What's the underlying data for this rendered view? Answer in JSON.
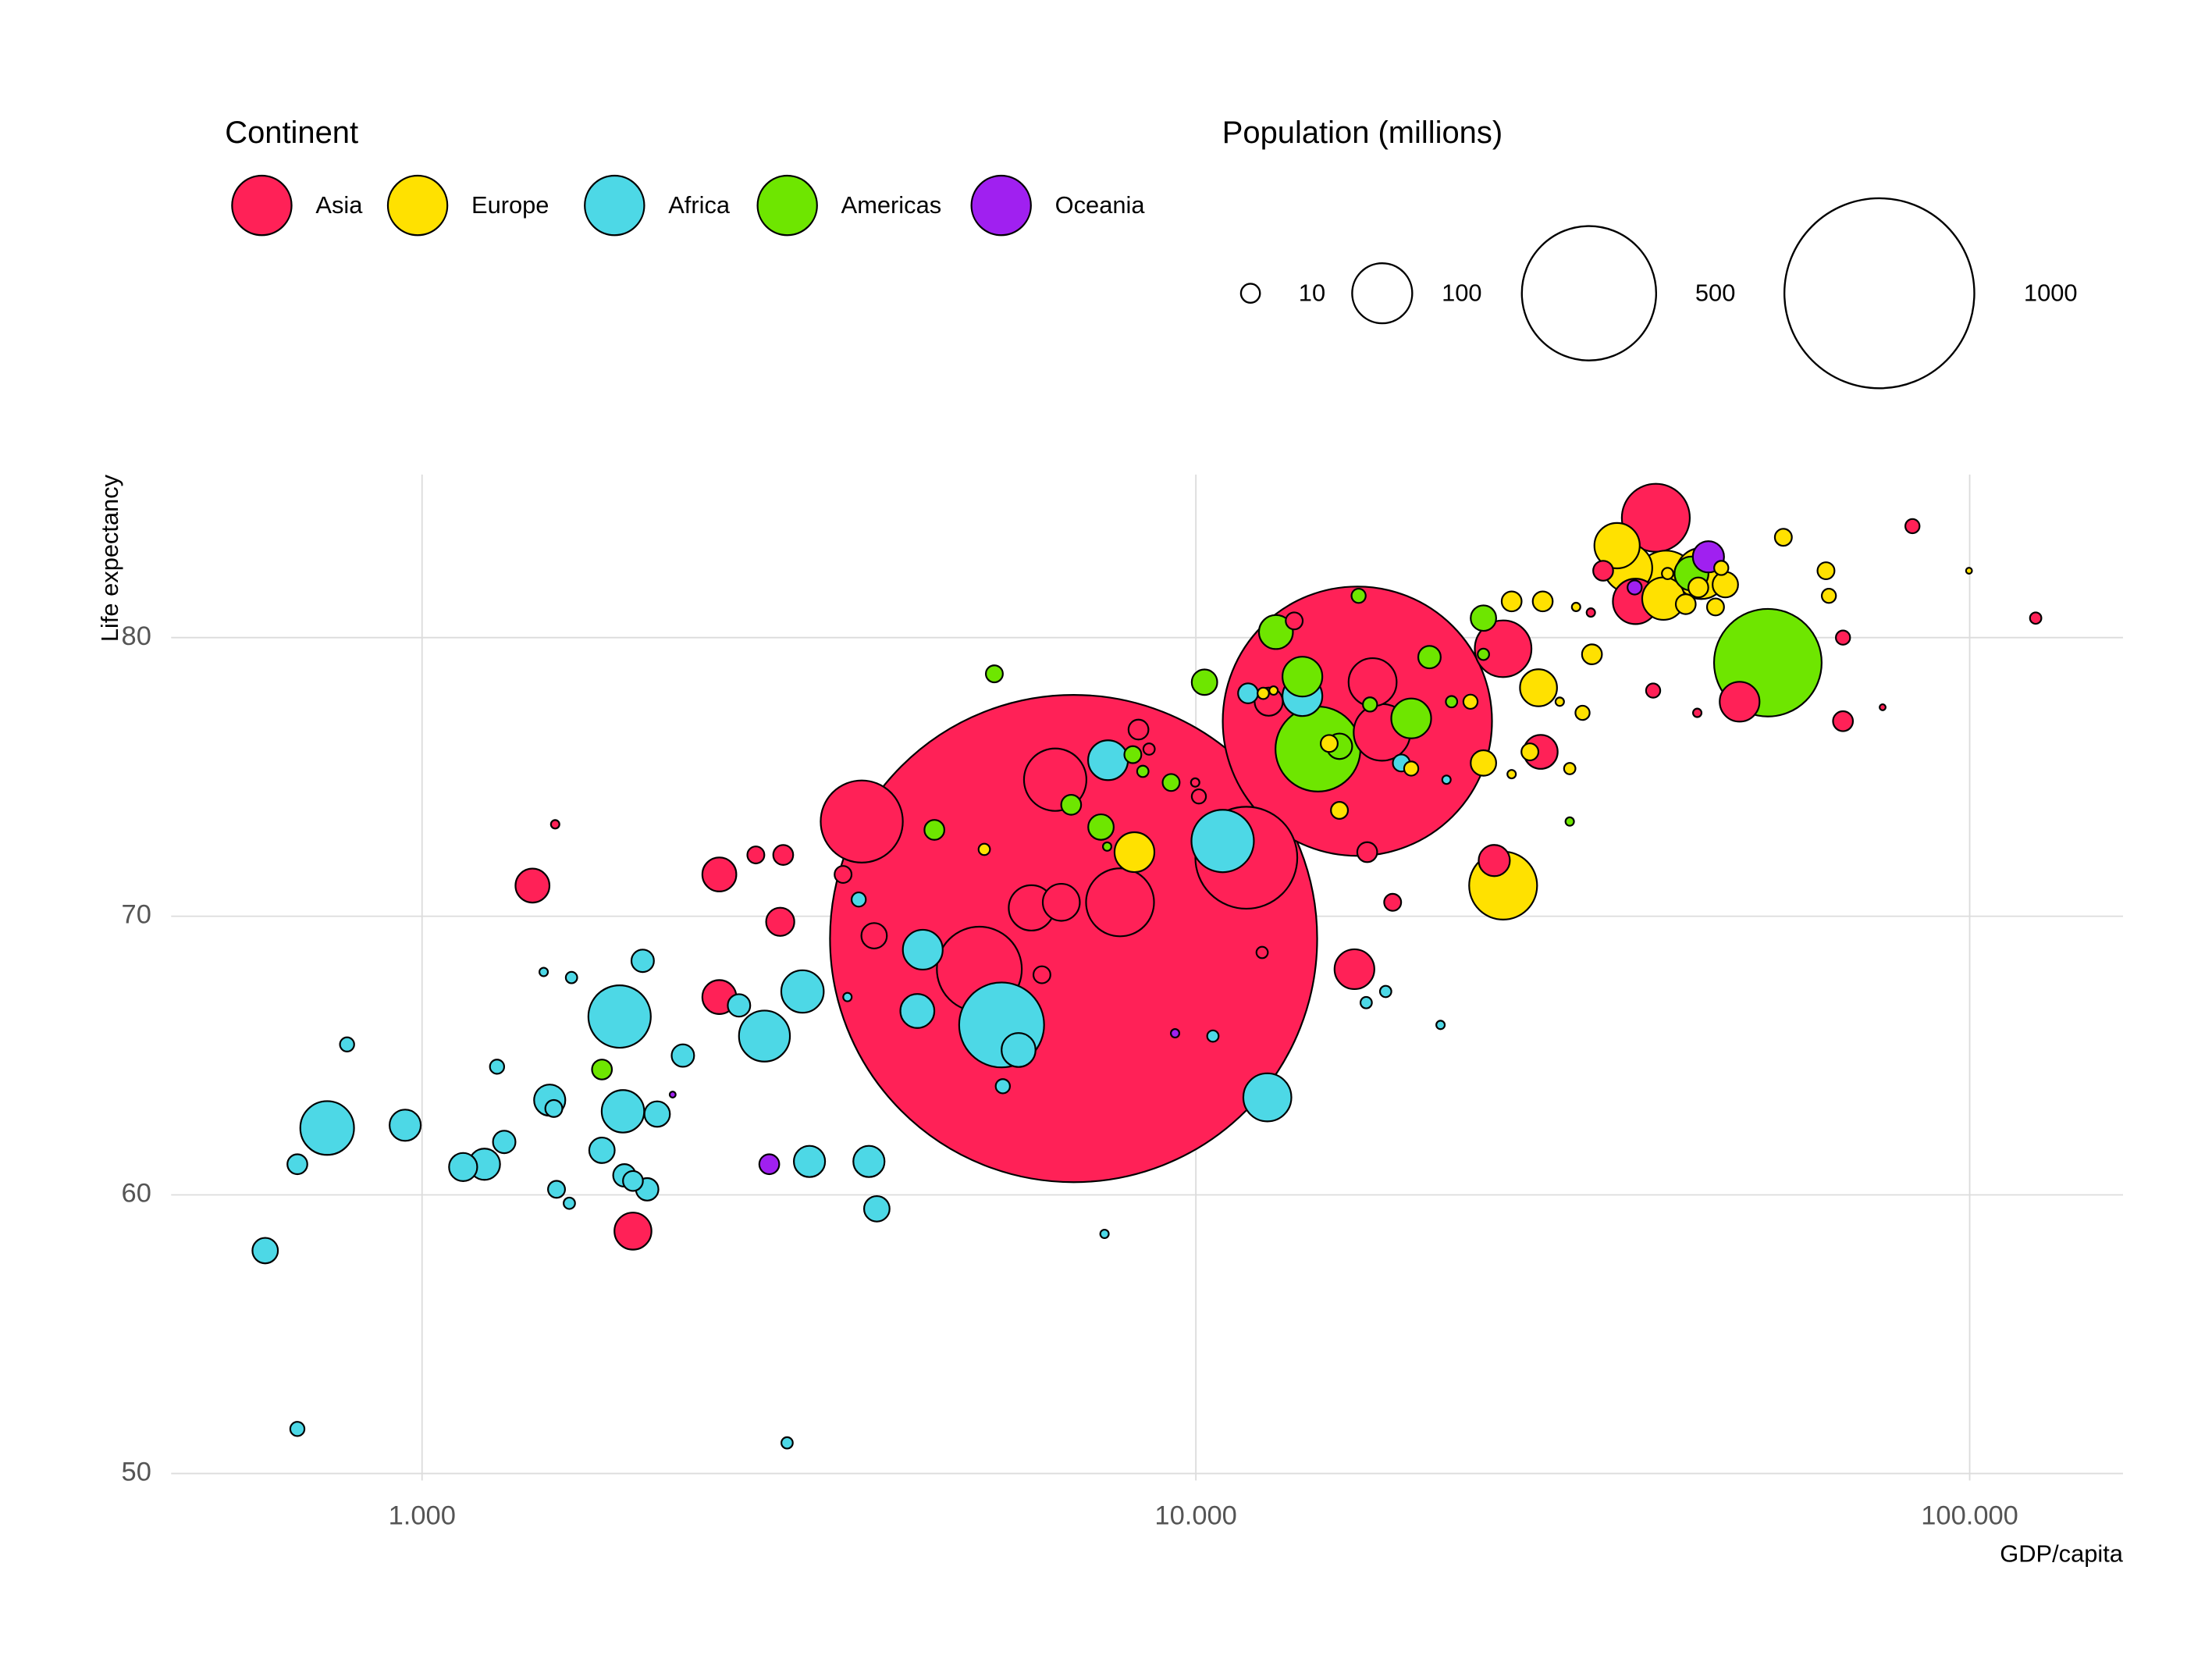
{
  "chart_data": {
    "type": "bubble",
    "x_label": "GDP/capita",
    "y_label": "Life expectancy",
    "legend_title": "Continent",
    "size_legend": {
      "title": "Population (millions)",
      "values": [
        10,
        100,
        500,
        1000
      ]
    },
    "xscale": "log",
    "grid": true,
    "xlim": [
      474,
      157800
    ],
    "ylim": [
      49.75,
      85.85
    ],
    "xticks": [
      {
        "value": 1000,
        "label": "1.000"
      },
      {
        "value": 10000,
        "label": "10.000"
      },
      {
        "value": 100000,
        "label": "100.000"
      }
    ],
    "yticks": [
      50,
      60,
      70,
      80
    ],
    "series": [
      {
        "name": "Asia",
        "color": "#ff2157",
        "x": [
          6950,
          16170,
          3700,
          6580,
          5250,
          7980,
          6130,
          6700,
          11620,
          16920,
          17400,
          24950,
          39300,
          37000,
          50430,
          24300,
          16030,
          27900,
          1389,
          2422,
          2422,
          1873,
          2903,
          3839,
          6325,
          8430,
          8700,
          2700,
          2929,
          3500,
          10090,
          9980,
          16650,
          17960,
          12180,
          13400,
          38990,
          44460,
          33600,
          32390,
          68590,
          68590,
          84340,
          121700,
          77180,
          1486,
          12420
        ],
        "y": [
          69.2,
          77.0,
          73.4,
          74.9,
          68.1,
          70.5,
          70.3,
          70.5,
          72.1,
          78.4,
          76.6,
          79.6,
          84.3,
          81.3,
          77.7,
          72.0,
          68.1,
          75.9,
          71.1,
          71.5,
          67.1,
          58.7,
          69.8,
          69.3,
          67.9,
          76.7,
          76.0,
          72.2,
          72.2,
          71.5,
          74.3,
          74.8,
          72.3,
          70.5,
          68.7,
          80.6,
          78.1,
          77.3,
          82.4,
          80.9,
          80.0,
          77.0,
          84.0,
          80.7,
          77.5,
          73.3,
          77.7
        ],
        "size": [
          6580,
          2010,
          187,
          108,
          200,
          128,
          57,
          38,
          288,
          64,
          89,
          89,
          128,
          57,
          44,
          27,
          44,
          32,
          32,
          32,
          32,
          38,
          22,
          18,
          8,
          11,
          3.6,
          8,
          11,
          8,
          5.6,
          2,
          11,
          8,
          3.6,
          8,
          5.6,
          2,
          11,
          2,
          5.6,
          11,
          5.6,
          3.6,
          1,
          2,
          22
        ]
      },
      {
        "name": "Europe",
        "color": "#ffe100",
        "x": [
          24950,
          45000,
          40500,
          35020,
          36200,
          40200,
          48330,
          44600,
          42960,
          46940,
          47750,
          40700,
          57440,
          65210,
          65770,
          99800,
          27720,
          25590,
          28070,
          32500,
          31600,
          23530,
          27020,
          22640,
          18980,
          14870,
          15330,
          8330,
          5328,
          30420,
          31000,
          12220,
          12600,
          25590,
          29530
        ],
        "y": [
          71.1,
          82.3,
          82.0,
          83.3,
          82.5,
          81.4,
          81.9,
          81.8,
          81.2,
          81.1,
          82.5,
          82.3,
          83.6,
          82.4,
          81.5,
          82.4,
          78.2,
          81.3,
          81.3,
          79.4,
          77.3,
          75.5,
          75.9,
          77.7,
          75.3,
          76.2,
          73.8,
          72.3,
          72.4,
          75.3,
          81.1,
          78.0,
          78.1,
          75.1,
          77.7
        ],
        "size": [
          128,
          72,
          108,
          57,
          64,
          50,
          18,
          11,
          11,
          8,
          5.6,
          3.6,
          8,
          8,
          5.6,
          1,
          38,
          11,
          11,
          11,
          5.6,
          18,
          8,
          5.6,
          5.6,
          8,
          8,
          44,
          3.6,
          3.6,
          2,
          3.6,
          2,
          2,
          2
        ]
      },
      {
        "name": "Africa",
        "color": "#4dd8e6",
        "x": [
          5610,
          1800,
          754,
          10830,
          12370,
          2770,
          3102,
          4437,
          13730,
          7700,
          1818,
          5900,
          4366,
          951,
          1462,
          1204,
          1130,
          3167,
          3780,
          3870,
          1708,
          2013,
          1954,
          1826,
          1873,
          627,
          690,
          1277,
          2173,
          2568,
          1928,
          1492,
          1480,
          1250,
          800,
          690,
          2963,
          3667,
          5630,
          1560,
          1436,
          1550,
          7620,
          10520,
          16600,
          17590,
          20710,
          11680,
          18430,
          21080,
          3546
        ],
        "y": [
          66.1,
          66.4,
          62.4,
          72.7,
          63.5,
          65.7,
          67.3,
          68.8,
          77.9,
          75.6,
          63.0,
          65.2,
          66.6,
          62.5,
          63.4,
          61.1,
          61.0,
          61.2,
          61.2,
          59.5,
          61.6,
          62.9,
          60.2,
          60.7,
          60.5,
          58.0,
          61.1,
          61.9,
          65.0,
          66.8,
          68.4,
          60.2,
          63.1,
          64.6,
          65.4,
          51.6,
          51.1,
          70.6,
          63.9,
          67.8,
          68.0,
          59.7,
          58.6,
          65.7,
          66.9,
          67.3,
          66.1,
          78.0,
          75.5,
          74.9,
          67.1
        ],
        "size": [
          200,
          108,
          80,
          108,
          64,
          72,
          50,
          44,
          44,
          44,
          50,
          32,
          32,
          27,
          27,
          27,
          22,
          27,
          27,
          18,
          18,
          18,
          14,
          14,
          11,
          18,
          11,
          14,
          14,
          14,
          14,
          8,
          8,
          5.6,
          5.6,
          5.6,
          3.6,
          5.6,
          5.6,
          3.6,
          2,
          3.6,
          2,
          3.6,
          3.6,
          3.6,
          2,
          11,
          8,
          2,
          2
        ]
      },
      {
        "name": "Americas",
        "color": "#6ee600",
        "x": [
          54850,
          14380,
          13730,
          12690,
          18980,
          10260,
          23530,
          20040,
          7540,
          6900,
          4593,
          5490,
          9290,
          8290,
          8540,
          1708,
          16230,
          43700,
          21400,
          23530,
          30420,
          15330,
          16790,
          7680
        ],
        "y": [
          79.1,
          76.0,
          78.6,
          80.2,
          77.1,
          78.4,
          80.7,
          79.3,
          73.2,
          74.0,
          73.1,
          78.7,
          74.8,
          75.8,
          75.2,
          64.5,
          81.5,
          82.3,
          77.7,
          79.4,
          73.4,
          76.1,
          77.6,
          72.5
        ],
        "size": [
          321,
          200,
          44,
          32,
          44,
          18,
          18,
          14,
          18,
          11,
          11,
          8,
          8,
          8,
          3.6,
          11,
          5.6,
          32,
          3.6,
          3.6,
          2,
          18,
          5.6,
          2
        ]
      },
      {
        "name": "Oceania",
        "color": "#a020f0",
        "x": [
          45960,
          2810,
          36900,
          9400,
          2108
        ],
        "y": [
          82.9,
          61.1,
          81.8,
          65.8,
          63.6
        ],
        "size": [
          27,
          11,
          5.6,
          2,
          1
        ]
      }
    ]
  }
}
